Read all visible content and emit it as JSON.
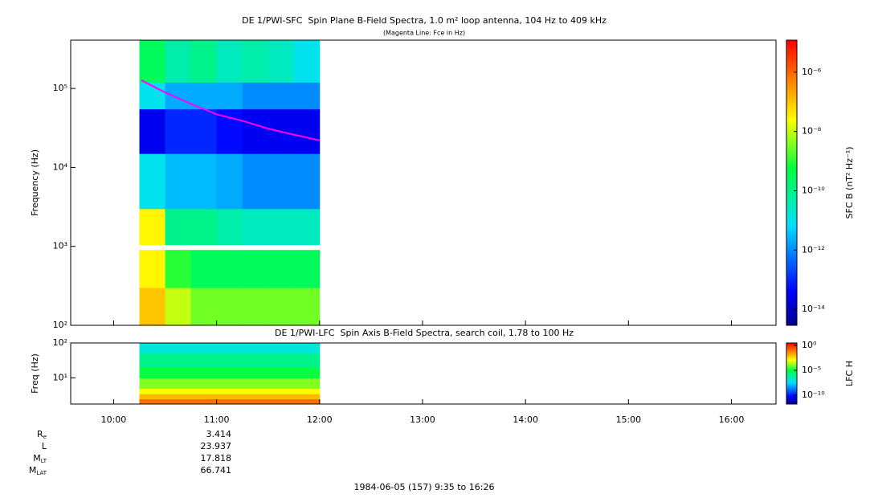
{
  "chart_data": [
    {
      "type": "spectrogram",
      "title": "DE 1/PWI-SFC  Spin Plane B-Field Spectra, 1.0 m² loop antenna, 104 Hz to 409 kHz",
      "subtitle": "(Magenta Line: Fce in Hz)",
      "y_label": "Frequency (Hz)",
      "xlim": [
        9.583,
        16.433
      ],
      "ylim": [
        100,
        409000
      ],
      "log_y": true,
      "yticks": [
        {
          "value": 100,
          "label": "10²"
        },
        {
          "value": 1000,
          "label": "10³"
        },
        {
          "value": 10000,
          "label": "10⁴"
        },
        {
          "value": 100000,
          "label": "10⁵"
        }
      ],
      "x_edges": [
        10.25,
        10.5,
        10.75,
        11.0,
        11.25,
        11.5,
        11.75,
        12.0
      ],
      "y_edges": [
        100,
        300,
        900,
        1050,
        3000,
        15000,
        55000,
        120000,
        409000
      ],
      "values": [
        [
          1e-07,
          1e-08,
          3e-09,
          3e-09,
          3e-09,
          3e-09,
          3e-09
        ],
        [
          3e-08,
          1e-09,
          3e-10,
          3e-10,
          3e-10,
          3e-10,
          3e-10
        ],
        [
          null,
          null,
          null,
          null,
          null,
          null,
          null
        ],
        [
          3e-08,
          1e-10,
          1e-10,
          5e-11,
          3e-11,
          3e-11,
          3e-11
        ],
        [
          1e-11,
          3e-12,
          3e-12,
          2e-12,
          1e-12,
          1e-12,
          1e-12
        ],
        [
          3e-14,
          1e-13,
          1e-13,
          5e-14,
          3e-14,
          3e-14,
          3e-14
        ],
        [
          1e-11,
          2e-12,
          2e-12,
          2e-12,
          1e-12,
          1e-12,
          1e-12
        ],
        [
          3e-10,
          5e-11,
          1e-10,
          3e-11,
          5e-11,
          3e-11,
          1e-11
        ]
      ],
      "colorbar": {
        "label": "SFC B (nT² Hz⁻¹)",
        "clim": [
          2.9e-15,
          1.2e-05
        ],
        "ticks": [
          {
            "value": 1e-14,
            "label": "10⁻¹⁴"
          },
          {
            "value": 1e-12,
            "label": "10⁻¹²"
          },
          {
            "value": 1e-10,
            "label": "10⁻¹⁰"
          },
          {
            "value": 1e-08,
            "label": "10⁻⁸"
          },
          {
            "value": 1e-06,
            "label": "10⁻⁶"
          }
        ]
      },
      "line": {
        "color": "#ff00ff",
        "x": [
          10.27,
          10.5,
          10.75,
          11.0,
          11.25,
          11.5,
          11.75,
          12.0
        ],
        "values": [
          127000,
          89000,
          64000,
          47000,
          39000,
          31000,
          26000,
          22000
        ]
      }
    },
    {
      "type": "spectrogram",
      "title": "DE 1/PWI-LFC  Spin Axis B-Field Spectra, search coil, 1.78 to 100 Hz",
      "y_label": "Freq (Hz)",
      "xlim": [
        9.583,
        16.433
      ],
      "ylim": [
        1.78,
        100
      ],
      "log_y": true,
      "yticks": [
        {
          "value": 10,
          "label": "10¹"
        },
        {
          "value": 100,
          "label": "10²"
        }
      ],
      "xticks": [
        {
          "value": 10,
          "label": "10:00"
        },
        {
          "value": 11,
          "label": "11:00"
        },
        {
          "value": 12,
          "label": "12:00"
        },
        {
          "value": 13,
          "label": "13:00"
        },
        {
          "value": 14,
          "label": "14:00"
        },
        {
          "value": 15,
          "label": "15:00"
        },
        {
          "value": 16,
          "label": "16:00"
        }
      ],
      "x_edges": [
        10.25,
        12.0
      ],
      "y_edges": [
        1.78,
        2.5,
        3.5,
        5,
        10,
        20,
        50,
        100
      ],
      "values": [
        [
          0.1
        ],
        [
          0.01
        ],
        [
          0.001
        ],
        [
          0.0001
        ],
        [
          1e-05
        ],
        [
          1e-06
        ],
        [
          1e-07
        ]
      ],
      "colorbar": {
        "label": "LFC H",
        "clim": [
          1.6e-12,
          3
        ],
        "ticks": [
          {
            "value": 1e-10,
            "label": "10⁻¹⁰"
          },
          {
            "value": 1e-05,
            "label": "10⁻⁵"
          },
          {
            "value": 1,
            "label": "10⁰"
          }
        ]
      }
    }
  ],
  "ephemeris": {
    "rows": [
      {
        "label": "R",
        "sub": "e",
        "value": 3.414
      },
      {
        "label": "L",
        "value": 23.937
      },
      {
        "label": "M",
        "sub": "LT",
        "value": 17.818
      },
      {
        "label": "M",
        "sub": "LAT",
        "value": 66.741
      }
    ]
  },
  "footer": "1984-06-05 (157) 9:35 to 16:26"
}
